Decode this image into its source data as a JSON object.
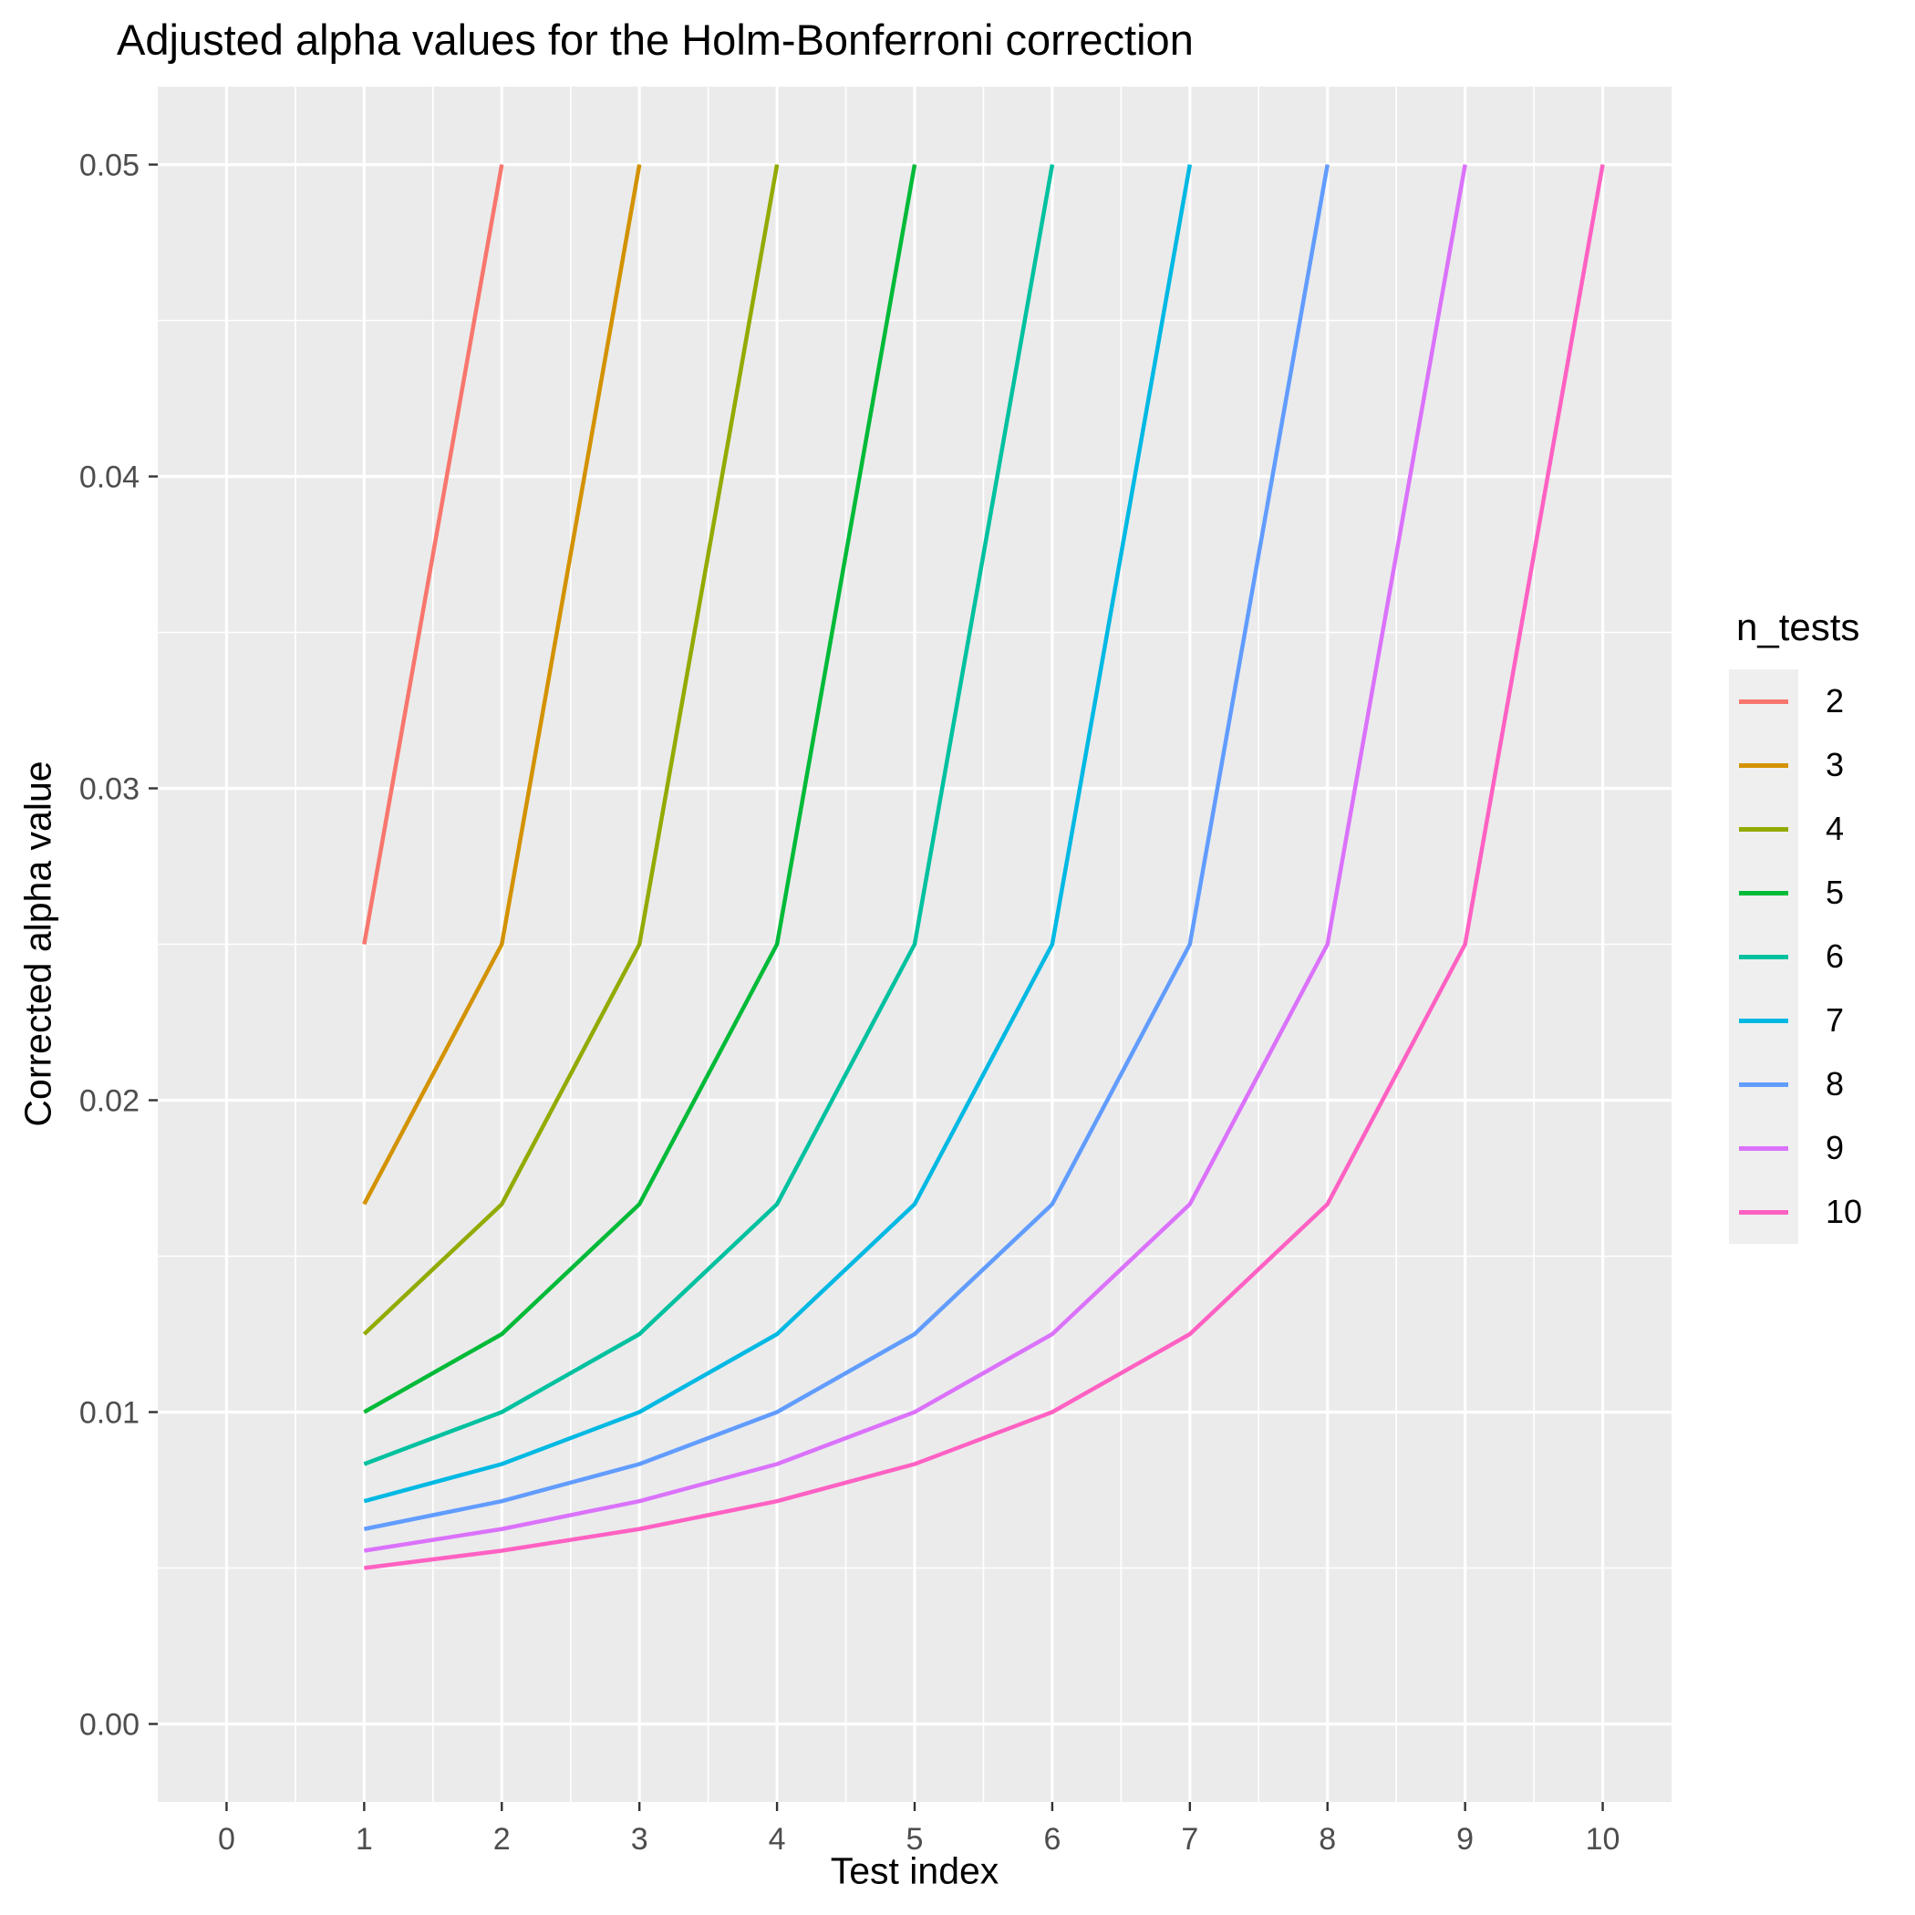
{
  "chart_data": {
    "type": "line",
    "title": "Adjusted alpha values for the Holm-Bonferroni correction",
    "xlabel": "Test index",
    "ylabel": "Corrected alpha value",
    "legend_title": "n_tests",
    "legend_position": "right",
    "grid": true,
    "background_color": "#FFFFFF",
    "panel_color": "#EBEBEB",
    "grid_color": "#FFFFFF",
    "tick_label_color": "#4D4D4D",
    "tick_mark_color": "#333333",
    "legend_key_color": "#EFEFEF",
    "xlim": [
      -0.5,
      10.5
    ],
    "ylim": [
      -0.0025,
      0.0525
    ],
    "x_ticks": [
      0,
      1,
      2,
      3,
      4,
      5,
      6,
      7,
      8,
      9,
      10
    ],
    "x_tick_labels": [
      "0",
      "1",
      "2",
      "3",
      "4",
      "5",
      "6",
      "7",
      "8",
      "9",
      "10"
    ],
    "y_ticks": [
      0,
      0.01,
      0.02,
      0.03,
      0.04,
      0.05
    ],
    "y_tick_labels": [
      "0.00",
      "0.01",
      "0.02",
      "0.03",
      "0.04",
      "0.05"
    ],
    "x_minor_ticks": [
      0.5,
      1.5,
      2.5,
      3.5,
      4.5,
      5.5,
      6.5,
      7.5,
      8.5,
      9.5
    ],
    "y_minor_ticks": [
      0.005,
      0.015,
      0.025,
      0.035,
      0.045
    ],
    "series": [
      {
        "name": "2",
        "color": "#F8766D",
        "x": [
          1,
          2
        ],
        "y": [
          0.025,
          0.05
        ]
      },
      {
        "name": "3",
        "color": "#D39200",
        "x": [
          1,
          2,
          3
        ],
        "y": [
          0.016667,
          0.025,
          0.05
        ]
      },
      {
        "name": "4",
        "color": "#93AA00",
        "x": [
          1,
          2,
          3,
          4
        ],
        "y": [
          0.0125,
          0.016667,
          0.025,
          0.05
        ]
      },
      {
        "name": "5",
        "color": "#00BA38",
        "x": [
          1,
          2,
          3,
          4,
          5
        ],
        "y": [
          0.01,
          0.0125,
          0.016667,
          0.025,
          0.05
        ]
      },
      {
        "name": "6",
        "color": "#00C19F",
        "x": [
          1,
          2,
          3,
          4,
          5,
          6
        ],
        "y": [
          0.008333,
          0.01,
          0.0125,
          0.016667,
          0.025,
          0.05
        ]
      },
      {
        "name": "7",
        "color": "#00B9E3",
        "x": [
          1,
          2,
          3,
          4,
          5,
          6,
          7
        ],
        "y": [
          0.007143,
          0.008333,
          0.01,
          0.0125,
          0.016667,
          0.025,
          0.05
        ]
      },
      {
        "name": "8",
        "color": "#619CFF",
        "x": [
          1,
          2,
          3,
          4,
          5,
          6,
          7,
          8
        ],
        "y": [
          0.00625,
          0.007143,
          0.008333,
          0.01,
          0.0125,
          0.016667,
          0.025,
          0.05
        ]
      },
      {
        "name": "9",
        "color": "#DB72FB",
        "x": [
          1,
          2,
          3,
          4,
          5,
          6,
          7,
          8,
          9
        ],
        "y": [
          0.005556,
          0.00625,
          0.007143,
          0.008333,
          0.01,
          0.0125,
          0.016667,
          0.025,
          0.05
        ]
      },
      {
        "name": "10",
        "color": "#FF61C3",
        "x": [
          1,
          2,
          3,
          4,
          5,
          6,
          7,
          8,
          9,
          10
        ],
        "y": [
          0.005,
          0.005556,
          0.00625,
          0.007143,
          0.008333,
          0.01,
          0.0125,
          0.016667,
          0.025,
          0.05
        ]
      }
    ]
  }
}
